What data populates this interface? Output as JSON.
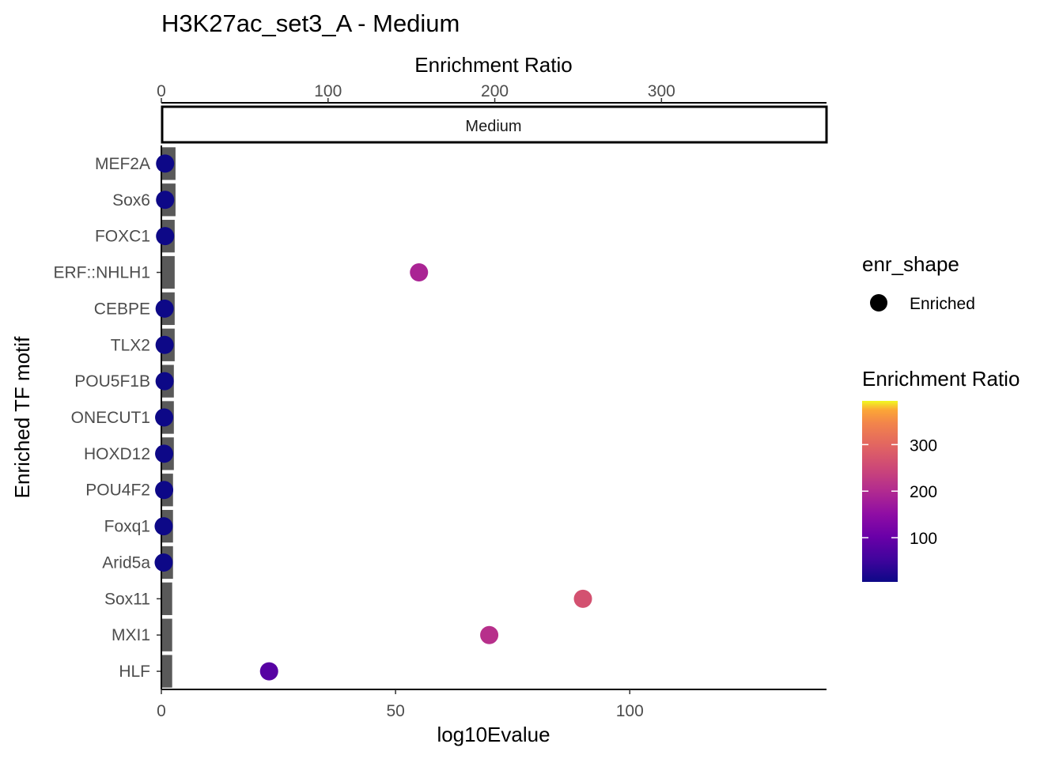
{
  "chart_data": {
    "type": "scatter",
    "title": "H3K27ac_set3_A - Medium",
    "facet_label": "Medium",
    "xlabel": "log10Evalue",
    "ylabel": "Enriched TF motif",
    "x_ticks": [
      0,
      50,
      100
    ],
    "xlim": [
      0,
      142
    ],
    "secondary_axis": {
      "label": "Enrichment Ratio",
      "ticks": [
        0,
        100,
        200,
        300
      ],
      "lim": [
        0,
        399
      ]
    },
    "categories": [
      "MEF2A",
      "Sox6",
      "FOXC1",
      "ERF::NHLH1",
      "CEBPE",
      "TLX2",
      "POU5F1B",
      "ONECUT1",
      "HOXD12",
      "POU4F2",
      "Foxq1",
      "Arid5a",
      "Sox11",
      "MXI1",
      "HLF"
    ],
    "bars": {
      "measure": "Enrichment Ratio",
      "color": "#595959",
      "values": [
        8.5,
        8.5,
        8,
        8,
        8,
        8,
        7.5,
        7.5,
        7.5,
        7,
        7,
        7,
        6.5,
        6.5,
        6.5
      ]
    },
    "points": {
      "x": [
        0.8,
        0.8,
        0.8,
        55,
        0.7,
        0.7,
        0.7,
        0.6,
        0.6,
        0.6,
        0.5,
        0.5,
        90,
        70,
        23
      ],
      "enrichment_ratio": [
        5,
        5,
        5,
        190,
        5,
        5,
        5,
        5,
        5,
        5,
        5,
        5,
        265,
        210,
        80
      ]
    },
    "grid": false,
    "legend_placement": "right",
    "legend_shape": {
      "title": "enr_shape",
      "entries": [
        {
          "label": "Enriched",
          "color": "#000000"
        }
      ]
    },
    "legend_color": {
      "title": "Enrichment Ratio",
      "ticks": [
        100,
        200,
        300
      ],
      "range": [
        5,
        394
      ],
      "colormap": "plasma"
    }
  }
}
